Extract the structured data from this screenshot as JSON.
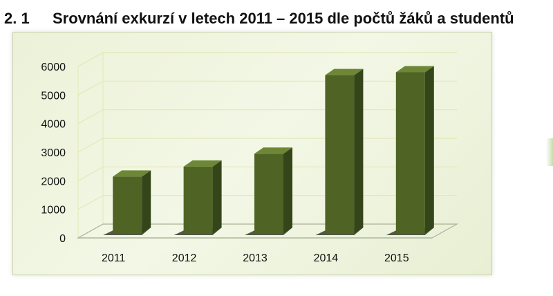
{
  "heading": {
    "number": "2. 1",
    "text": "Srovnání exkurzí v letech 2011 – 2015 dle počtů žáků a studentů"
  },
  "chart_data": {
    "type": "bar",
    "categories": [
      "2011",
      "2012",
      "2013",
      "2014",
      "2015"
    ],
    "values": [
      2000,
      2350,
      2800,
      5550,
      5650
    ],
    "title": "",
    "xlabel": "",
    "ylabel": "",
    "ylim": [
      0,
      6000
    ],
    "yticks": [
      0,
      1000,
      2000,
      3000,
      4000,
      5000,
      6000
    ],
    "grid": true,
    "legend": "none",
    "style": "3d-column",
    "colors": {
      "bar_front": "#4f6424",
      "bar_side": "#34451a",
      "bar_top": "#6d8737",
      "grid": "#e3e8b6",
      "floor": "#aab49a"
    }
  }
}
